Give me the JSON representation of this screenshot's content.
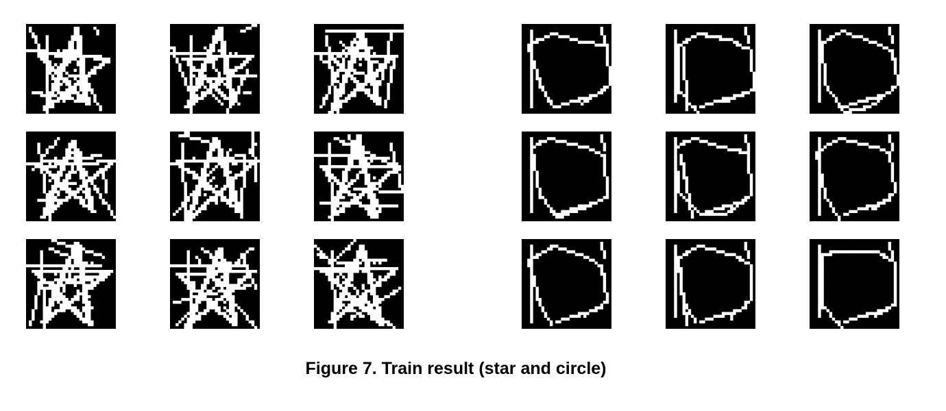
{
  "figure": {
    "caption": "Figure 7. Train result (star and circle)",
    "colors": {
      "background": "#000000",
      "stroke": "#ffffff"
    },
    "star_group": {
      "rows": 3,
      "cols": 3,
      "tiles": [
        {
          "variant": 0
        },
        {
          "variant": 1
        },
        {
          "variant": 2
        },
        {
          "variant": 3
        },
        {
          "variant": 4
        },
        {
          "variant": 5
        },
        {
          "variant": 6
        },
        {
          "variant": 7
        },
        {
          "variant": 8
        }
      ]
    },
    "circle_group": {
      "rows": 3,
      "cols": 3,
      "tiles": [
        {
          "variant": 0
        },
        {
          "variant": 1
        },
        {
          "variant": 2
        },
        {
          "variant": 3
        },
        {
          "variant": 4
        },
        {
          "variant": 5
        },
        {
          "variant": 6
        },
        {
          "variant": 7
        },
        {
          "variant": 8
        }
      ]
    }
  }
}
